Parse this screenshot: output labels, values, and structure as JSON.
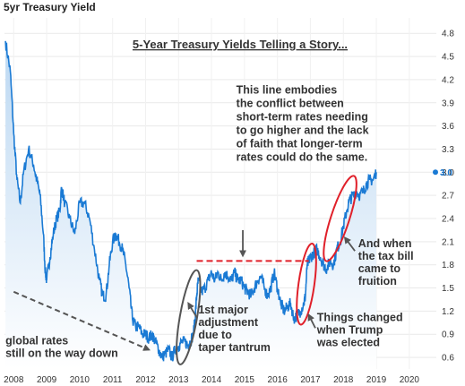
{
  "header": {
    "title": "5yr Treasury Yield"
  },
  "chart_data": {
    "type": "area",
    "title": "5-Year Treasury Yields Telling a Story...",
    "xlabel": "",
    "ylabel": "",
    "xlim": [
      2007.72,
      2020.82
    ],
    "ylim": [
      0.45,
      5.0
    ],
    "x_ticks": [
      "2008",
      "2009",
      "2010",
      "2011",
      "2012",
      "2013",
      "2014",
      "2015",
      "2016",
      "2017",
      "2018",
      "2019",
      "2020"
    ],
    "y_ticks": [
      "0.6",
      "0.9",
      "1.2",
      "1.5",
      "1.8",
      "2.1",
      "2.4",
      "2.7",
      "3.0",
      "3.3",
      "3.6",
      "3.9",
      "4.2",
      "4.5",
      "4.8"
    ],
    "current_value_label": "3.0",
    "grid": true,
    "colors": {
      "line": "#1a7ad4",
      "fill_top": "#bcd8f2",
      "fill_bottom": "#ffffff",
      "ellipse_gray": "#555555",
      "ellipse_red": "#e0202a",
      "dashed_red": "#e0202a",
      "arrow_gray": "#555555"
    },
    "series": [
      {
        "x": [
          2007.75,
          2007.9,
          2008.0,
          2008.1,
          2008.2,
          2008.3,
          2008.45,
          2008.6,
          2008.7,
          2008.8,
          2008.9,
          2008.96,
          2009.0,
          2009.1,
          2009.2,
          2009.3,
          2009.4,
          2009.45,
          2009.55,
          2009.7,
          2009.85,
          2010.0,
          2010.15,
          2010.3,
          2010.45,
          2010.6,
          2010.7,
          2010.8,
          2010.9,
          2011.0,
          2011.1,
          2011.2,
          2011.3,
          2011.4,
          2011.5,
          2011.6,
          2011.7,
          2011.8,
          2011.9,
          2012.0,
          2012.1,
          2012.2,
          2012.3,
          2012.4,
          2012.5,
          2012.6,
          2012.7,
          2012.8,
          2012.9,
          2013.0,
          2013.1,
          2013.2,
          2013.3,
          2013.35,
          2013.45,
          2013.5,
          2013.55,
          2013.6,
          2013.7,
          2013.8,
          2013.9,
          2014.0,
          2014.1,
          2014.2,
          2014.3,
          2014.4,
          2014.5,
          2014.6,
          2014.7,
          2014.8,
          2014.9,
          2015.0,
          2015.1,
          2015.2,
          2015.3,
          2015.4,
          2015.5,
          2015.6,
          2015.7,
          2015.8,
          2015.9,
          2016.0,
          2016.1,
          2016.2,
          2016.3,
          2016.4,
          2016.5,
          2016.6,
          2016.7,
          2016.8,
          2016.85,
          2016.9,
          2016.95,
          2017.0,
          2017.1,
          2017.2,
          2017.3,
          2017.4,
          2017.5,
          2017.6,
          2017.7,
          2017.8,
          2017.9,
          2018.0,
          2018.1,
          2018.2,
          2018.3,
          2018.4,
          2018.5,
          2018.6,
          2018.7,
          2018.8,
          2018.9,
          2019.0
        ],
        "y": [
          4.7,
          4.3,
          3.5,
          2.9,
          2.6,
          3.0,
          3.3,
          3.1,
          2.9,
          2.7,
          2.2,
          1.7,
          1.6,
          1.9,
          2.2,
          2.4,
          2.5,
          2.8,
          2.6,
          2.4,
          2.2,
          2.6,
          2.6,
          2.4,
          2.0,
          1.6,
          1.4,
          1.4,
          1.8,
          2.1,
          2.2,
          2.1,
          2.0,
          1.8,
          1.5,
          1.1,
          1.0,
          1.0,
          0.9,
          0.9,
          0.85,
          0.9,
          0.8,
          0.7,
          0.6,
          0.65,
          0.7,
          0.6,
          0.7,
          0.75,
          0.8,
          0.8,
          0.75,
          0.8,
          0.9,
          1.1,
          1.4,
          1.6,
          1.45,
          1.5,
          1.6,
          1.7,
          1.6,
          1.7,
          1.6,
          1.7,
          1.65,
          1.6,
          1.7,
          1.6,
          1.6,
          1.5,
          1.45,
          1.4,
          1.5,
          1.6,
          1.65,
          1.5,
          1.4,
          1.5,
          1.7,
          1.5,
          1.3,
          1.2,
          1.25,
          1.3,
          1.1,
          1.15,
          1.2,
          1.3,
          1.4,
          1.8,
          1.85,
          1.9,
          1.95,
          2.0,
          1.9,
          1.8,
          1.75,
          1.85,
          1.8,
          2.0,
          2.1,
          2.3,
          2.5,
          2.65,
          2.7,
          2.75,
          2.7,
          2.75,
          2.85,
          2.9,
          2.9,
          3.0
        ]
      }
    ],
    "annotations": [
      {
        "id": "story",
        "lines": [
          "This line embodies",
          "the conflict between",
          "short-term rates needing",
          "to go higher and the lack",
          "of faith that longer-term",
          "rates could do the same."
        ]
      },
      {
        "id": "global",
        "lines": [
          "global rates",
          "still on the way down"
        ]
      },
      {
        "id": "taper",
        "lines": [
          "1st major",
          "adjustment",
          "due to",
          "taper tantrum"
        ]
      },
      {
        "id": "trump",
        "lines": [
          "Things changed",
          "when Trump",
          "was elected"
        ]
      },
      {
        "id": "taxbill",
        "lines": [
          "And when",
          "the tax bill",
          "came to",
          "fruition"
        ]
      }
    ]
  }
}
